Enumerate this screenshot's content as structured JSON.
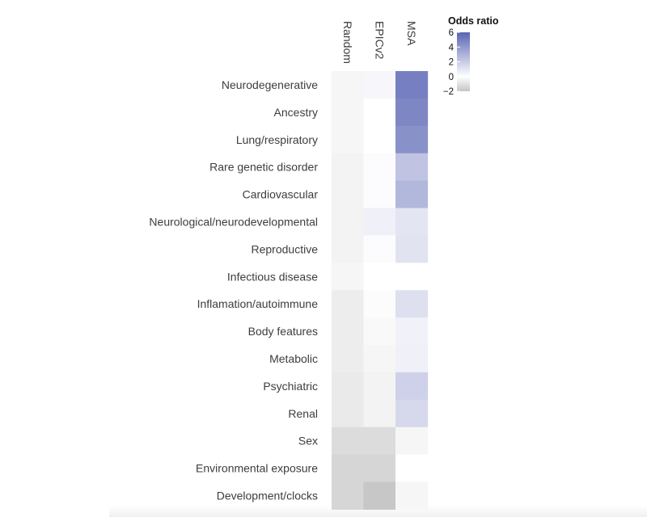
{
  "chart_data": {
    "type": "heatmap",
    "columns": [
      "Random",
      "EPICv2",
      "MSA"
    ],
    "rows": [
      "Neurodegenerative",
      "Ancestry",
      "Lung/respiratory",
      "Rare genetic disorder",
      "Cardiovascular",
      "Neurological/neurodevelopmental",
      "Reproductive",
      "Infectious disease",
      "Inflamation/autoimmune",
      "Body features",
      "Metabolic",
      "Psychiatric",
      "Renal",
      "Sex",
      "Environmental exposure",
      "Development/clocks"
    ],
    "values": [
      [
        -0.3,
        0.3,
        5.0
      ],
      [
        -0.3,
        0.0,
        4.7
      ],
      [
        -0.3,
        0.0,
        4.3
      ],
      [
        -0.4,
        0.1,
        2.3
      ],
      [
        -0.4,
        0.1,
        2.8
      ],
      [
        -0.4,
        0.6,
        1.0
      ],
      [
        -0.4,
        0.1,
        1.1
      ],
      [
        -0.3,
        0.0,
        0.0
      ],
      [
        -0.6,
        -0.1,
        1.2
      ],
      [
        -0.6,
        -0.2,
        0.5
      ],
      [
        -0.6,
        -0.3,
        0.6
      ],
      [
        -0.7,
        -0.4,
        1.8
      ],
      [
        -0.7,
        -0.4,
        1.5
      ],
      [
        -1.2,
        -1.2,
        -0.3
      ],
      [
        -1.4,
        -1.4,
        0.0
      ],
      [
        -1.4,
        -1.9,
        -0.3
      ]
    ],
    "legend": {
      "title": "Odds ratio",
      "ticks": [
        "6",
        "4",
        "2",
        "0",
        "−2"
      ],
      "range": [
        -2,
        6
      ],
      "colors": {
        "low": "#c4c4c4",
        "mid": "#ffffff",
        "high": "#5a65b4"
      }
    }
  }
}
